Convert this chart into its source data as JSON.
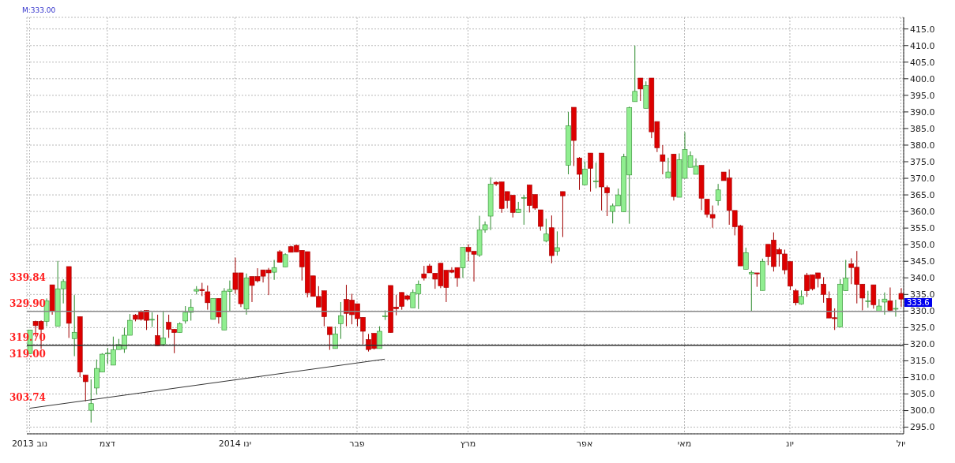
{
  "chart_data": {
    "type": "candlestick",
    "categories": [
      "2013 נוב",
      null,
      null,
      null,
      null,
      null,
      null,
      null,
      null,
      null,
      null,
      null,
      null,
      null,
      "דצמ",
      null,
      null,
      null,
      null,
      null,
      null,
      null,
      null,
      null,
      null,
      null,
      null,
      null,
      null,
      null,
      null,
      null,
      null,
      null,
      null,
      null,
      null,
      "2014 ינו",
      null,
      null,
      null,
      null,
      null,
      null,
      null,
      null,
      null,
      null,
      null,
      null,
      null,
      null,
      null,
      null,
      null,
      null,
      null,
      null,
      null,
      "פבר",
      null,
      null,
      null,
      null,
      null,
      null,
      null,
      null,
      null,
      null,
      null,
      null,
      null,
      null,
      null,
      null,
      null,
      null,
      null,
      "מרץ",
      null,
      null,
      null,
      null,
      null,
      null,
      null,
      null,
      null,
      null,
      null,
      null,
      null,
      null,
      null,
      null,
      null,
      null,
      null,
      null,
      "אפר",
      null,
      null,
      null,
      null,
      null,
      null,
      null,
      null,
      null,
      null,
      null,
      null,
      null,
      null,
      null,
      null,
      null,
      "מאי",
      null,
      null,
      null,
      null,
      null,
      null,
      null,
      null,
      null,
      null,
      null,
      null,
      null,
      null,
      null,
      null,
      null,
      null,
      "יונ",
      null,
      null,
      null,
      null,
      null,
      null,
      null,
      null,
      null,
      null,
      null,
      null,
      null,
      null,
      null,
      null,
      null,
      null,
      null,
      "יול"
    ],
    "ohlc": [
      [
        317.2,
        324.3,
        317.0,
        324.3
      ],
      [
        326.9,
        327.1,
        322.3,
        325.6
      ],
      [
        326.9,
        327.2,
        318.6,
        324.5
      ],
      [
        326.9,
        333.8,
        325.4,
        333.1
      ],
      [
        337.9,
        337.9,
        328.9,
        330.0
      ],
      [
        325.4,
        345.1,
        325.4,
        336.7
      ],
      [
        336.7,
        339.6,
        332.3,
        338.9
      ],
      [
        343.4,
        343.4,
        321.9,
        326.3
      ],
      [
        321.7,
        334.8,
        316.4,
        323.6
      ],
      [
        328.3,
        328.3,
        310.1,
        311.6
      ],
      [
        310.7,
        310.7,
        302.8,
        308.7
      ],
      [
        300.1,
        309.4,
        296.4,
        302.1
      ],
      [
        306.8,
        315.4,
        304.8,
        312.7
      ],
      [
        311.6,
        317.3,
        311.6,
        317.0
      ],
      [
        317.3,
        318.9,
        314.0,
        317.3
      ],
      [
        313.7,
        322.3,
        313.7,
        318.3
      ],
      [
        318.4,
        321.6,
        318.4,
        319.9
      ],
      [
        318.6,
        325.0,
        317.4,
        322.7
      ],
      [
        322.7,
        329.1,
        322.7,
        327.2
      ],
      [
        328.8,
        329.1,
        326.9,
        327.5
      ],
      [
        330.0,
        330.2,
        327.1,
        327.5
      ],
      [
        330.2,
        330.2,
        324.3,
        327.2
      ],
      [
        327.5,
        329.6,
        325.2,
        327.5
      ],
      [
        322.6,
        328.9,
        319.5,
        319.5
      ],
      [
        320.0,
        330.0,
        319.4,
        321.9
      ],
      [
        326.6,
        328.9,
        321.9,
        324.5
      ],
      [
        324.5,
        324.5,
        317.3,
        323.5
      ],
      [
        323.5,
        326.6,
        323.5,
        326.2
      ],
      [
        327.0,
        331.5,
        326.2,
        329.6
      ],
      [
        329.6,
        333.6,
        327.1,
        331.1
      ],
      [
        336.0,
        337.5,
        335.0,
        336.5
      ],
      [
        336.5,
        338.5,
        334.5,
        336.1
      ],
      [
        335.8,
        337.7,
        330.4,
        332.5
      ],
      [
        327.5,
        333.8,
        327.5,
        333.8
      ],
      [
        333.8,
        333.8,
        326.2,
        328.2
      ],
      [
        324.3,
        336.9,
        324.3,
        336.0
      ],
      [
        335.9,
        339.2,
        330.0,
        336.5
      ],
      [
        341.5,
        346.1,
        335.2,
        336.5
      ],
      [
        341.5,
        341.5,
        331.2,
        332.2
      ],
      [
        330.6,
        341.3,
        328.9,
        340.0
      ],
      [
        340.4,
        340.4,
        332.7,
        337.7
      ],
      [
        340.4,
        342.9,
        338.6,
        339.1
      ],
      [
        342.4,
        342.4,
        338.6,
        340.5
      ],
      [
        342.4,
        343.0,
        334.8,
        341.5
      ],
      [
        341.7,
        345.4,
        339.4,
        343.1
      ],
      [
        347.9,
        348.4,
        344.7,
        344.7
      ],
      [
        343.3,
        347.4,
        343.3,
        347.0
      ],
      [
        349.4,
        349.7,
        347.7,
        347.7
      ],
      [
        349.8,
        350.0,
        347.8,
        347.8
      ],
      [
        348.3,
        348.3,
        339.2,
        343.3
      ],
      [
        347.9,
        347.9,
        334.1,
        335.5
      ],
      [
        340.6,
        340.6,
        334.4,
        334.4
      ],
      [
        334.4,
        337.5,
        331.2,
        331.2
      ],
      [
        336.1,
        336.1,
        325.4,
        328.3
      ],
      [
        325.2,
        325.2,
        318.3,
        322.9
      ],
      [
        318.7,
        325.3,
        318.7,
        323.1
      ],
      [
        326.2,
        332.7,
        321.6,
        328.6
      ],
      [
        333.5,
        337.9,
        325.4,
        329.3
      ],
      [
        333.3,
        335.2,
        326.0,
        328.9
      ],
      [
        332.2,
        332.2,
        325.4,
        327.7
      ],
      [
        328.1,
        328.1,
        320.0,
        323.9
      ],
      [
        321.4,
        323.1,
        317.8,
        318.4
      ],
      [
        323.3,
        323.3,
        318.4,
        318.7
      ],
      [
        318.7,
        325.4,
        318.7,
        323.9
      ],
      [
        328.5,
        330.2,
        327.3,
        328.5
      ],
      [
        337.7,
        337.7,
        323.5,
        323.5
      ],
      [
        331.2,
        334.9,
        328.7,
        330.7
      ],
      [
        335.6,
        335.6,
        330.4,
        331.4
      ],
      [
        334.6,
        334.8,
        333.1,
        333.6
      ],
      [
        331.0,
        336.5,
        331.0,
        335.6
      ],
      [
        335.2,
        339.2,
        330.6,
        338.1
      ],
      [
        341.2,
        343.6,
        339.2,
        339.9
      ],
      [
        343.6,
        344.2,
        341.5,
        341.5
      ],
      [
        341.4,
        341.4,
        336.7,
        339.6
      ],
      [
        344.4,
        344.4,
        336.9,
        337.6
      ],
      [
        342.3,
        342.3,
        332.7,
        337.1
      ],
      [
        342.3,
        343.2,
        341.4,
        341.7
      ],
      [
        343.1,
        343.1,
        337.3,
        340.0
      ],
      [
        343.0,
        349.2,
        340.0,
        349.2
      ],
      [
        349.2,
        350.1,
        345.0,
        347.9
      ],
      [
        348.0,
        348.0,
        338.9,
        347.1
      ],
      [
        346.9,
        358.7,
        346.3,
        354.4
      ],
      [
        354.4,
        357.0,
        353.6,
        356.0
      ],
      [
        358.6,
        370.3,
        354.4,
        368.2
      ],
      [
        368.8,
        369.1,
        367.7,
        368.3
      ],
      [
        368.9,
        368.9,
        359.6,
        360.9
      ],
      [
        366.0,
        366.0,
        360.9,
        363.3
      ],
      [
        364.9,
        364.9,
        358.2,
        359.7
      ],
      [
        359.7,
        362.9,
        359.7,
        360.7
      ],
      [
        364.2,
        365.0,
        356.0,
        364.2
      ],
      [
        368.0,
        368.0,
        359.7,
        361.8
      ],
      [
        365.1,
        365.1,
        360.5,
        361.0
      ],
      [
        360.5,
        360.5,
        354.2,
        355.5
      ],
      [
        351.1,
        357.8,
        350.7,
        353.2
      ],
      [
        355.1,
        358.8,
        344.4,
        346.7
      ],
      [
        348.0,
        354.0,
        346.7,
        349.1
      ],
      [
        366.0,
        366.0,
        352.3,
        364.7
      ],
      [
        373.9,
        390.0,
        371.2,
        385.8
      ],
      [
        391.4,
        391.4,
        373.7,
        381.4
      ],
      [
        376.1,
        376.4,
        366.5,
        371.2
      ],
      [
        368.0,
        375.1,
        368.0,
        372.8
      ],
      [
        377.6,
        377.6,
        366.0,
        373.0
      ],
      [
        369.2,
        374.7,
        367.0,
        369.2
      ],
      [
        377.6,
        377.6,
        360.3,
        367.4
      ],
      [
        367.2,
        367.8,
        358.6,
        365.6
      ],
      [
        360.0,
        362.4,
        356.4,
        361.7
      ],
      [
        361.7,
        366.9,
        361.7,
        365.0
      ],
      [
        359.9,
        377.4,
        359.9,
        376.5
      ],
      [
        371.0,
        391.6,
        356.3,
        391.3
      ],
      [
        393.1,
        410.0,
        393.1,
        396.2
      ],
      [
        400.2,
        400.2,
        393.3,
        396.9
      ],
      [
        391.1,
        399.2,
        391.1,
        397.9
      ],
      [
        400.2,
        400.2,
        382.1,
        384.0
      ],
      [
        387.1,
        387.1,
        377.9,
        379.2
      ],
      [
        377.1,
        380.0,
        371.2,
        375.1
      ],
      [
        370.2,
        376.2,
        370.2,
        371.9
      ],
      [
        377.3,
        377.3,
        363.3,
        364.5
      ],
      [
        364.3,
        377.5,
        364.3,
        375.6
      ],
      [
        370.0,
        383.9,
        370.0,
        378.7
      ],
      [
        373.3,
        378.1,
        373.3,
        376.8
      ],
      [
        371.2,
        376.0,
        371.2,
        373.7
      ],
      [
        373.9,
        373.9,
        360.4,
        364.0
      ],
      [
        363.7,
        363.7,
        358.2,
        359.1
      ],
      [
        359.1,
        361.8,
        355.1,
        358.0
      ],
      [
        363.2,
        368.3,
        361.8,
        366.5
      ],
      [
        371.9,
        371.9,
        369.3,
        369.3
      ],
      [
        370.1,
        372.7,
        356.0,
        360.3
      ],
      [
        360.3,
        360.3,
        352.8,
        355.4
      ],
      [
        355.7,
        356.0,
        343.6,
        343.6
      ],
      [
        342.6,
        349.1,
        342.6,
        347.6
      ],
      [
        341.2,
        342.2,
        329.9,
        341.6
      ],
      [
        341.5,
        341.5,
        337.3,
        341.2
      ],
      [
        336.2,
        345.8,
        336.2,
        344.9
      ],
      [
        350.1,
        350.1,
        343.8,
        346.4
      ],
      [
        351.4,
        353.7,
        341.9,
        343.4
      ],
      [
        348.5,
        349.1,
        343.4,
        347.2
      ],
      [
        347.2,
        348.5,
        341.1,
        342.4
      ],
      [
        344.9,
        344.9,
        336.3,
        337.5
      ],
      [
        336.1,
        336.7,
        331.7,
        332.5
      ],
      [
        332.1,
        336.2,
        331.9,
        334.4
      ],
      [
        340.8,
        341.5,
        334.3,
        336.1
      ],
      [
        340.9,
        340.9,
        336.2,
        336.7
      ],
      [
        341.5,
        341.5,
        337.1,
        339.8
      ],
      [
        338.1,
        340.2,
        332.5,
        335.0
      ],
      [
        333.8,
        335.9,
        327.9,
        327.9
      ],
      [
        328.0,
        330.8,
        324.3,
        327.7
      ],
      [
        325.2,
        339.6,
        325.2,
        338.1
      ],
      [
        336.1,
        345.4,
        336.1,
        339.9
      ],
      [
        344.2,
        345.9,
        338.1,
        343.1
      ],
      [
        343.2,
        348.1,
        332.3,
        338.0
      ],
      [
        338.1,
        338.1,
        330.2,
        333.9
      ],
      [
        333.1,
        336.1,
        331.0,
        333.1
      ],
      [
        337.9,
        337.9,
        330.7,
        331.9
      ],
      [
        330.0,
        333.6,
        330.0,
        331.5
      ],
      [
        332.7,
        335.6,
        328.9,
        333.6
      ],
      [
        333.1,
        337.1,
        329.8,
        330.2
      ],
      [
        330.6,
        333.4,
        328.3,
        330.8
      ],
      [
        335.3,
        336.9,
        331.2,
        333.6
      ]
    ],
    "colors": [
      "#90ee90",
      "#dd0000",
      "#dd0000",
      "#90ee90",
      "#dd0000",
      "#90ee90",
      "#90ee90",
      "#dd0000",
      "#90ee90",
      "#dd0000",
      "#dd0000",
      "#90ee90",
      "#90ee90",
      "#90ee90",
      "#90ee90",
      "#90ee90",
      "#90ee90",
      "#90ee90",
      "#90ee90",
      "#dd0000",
      "#dd0000",
      "#dd0000",
      "#90ee90",
      "#dd0000",
      "#90ee90",
      "#dd0000",
      "#dd0000",
      "#90ee90",
      "#90ee90",
      "#90ee90",
      "#90ee90",
      "#dd0000",
      "#dd0000",
      "#90ee90",
      "#dd0000",
      "#90ee90",
      "#90ee90",
      "#dd0000",
      "#dd0000",
      "#90ee90",
      "#dd0000",
      "#dd0000",
      "#dd0000",
      "#dd0000",
      "#90ee90",
      "#dd0000",
      "#90ee90",
      "#dd0000",
      "#dd0000",
      "#dd0000",
      "#dd0000",
      "#dd0000",
      "#dd0000",
      "#dd0000",
      "#dd0000",
      "#90ee90",
      "#90ee90",
      "#dd0000",
      "#dd0000",
      "#dd0000",
      "#dd0000",
      "#dd0000",
      "#dd0000",
      "#90ee90",
      "#90ee90",
      "#dd0000",
      "#dd0000",
      "#dd0000",
      "#dd0000",
      "#90ee90",
      "#90ee90",
      "#dd0000",
      "#dd0000",
      "#dd0000",
      "#dd0000",
      "#dd0000",
      "#dd0000",
      "#dd0000",
      "#90ee90",
      "#dd0000",
      "#dd0000",
      "#90ee90",
      "#90ee90",
      "#90ee90",
      "#dd0000",
      "#dd0000",
      "#dd0000",
      "#dd0000",
      "#90ee90",
      "#90ee90",
      "#dd0000",
      "#dd0000",
      "#dd0000",
      "#90ee90",
      "#dd0000",
      "#90ee90",
      "#dd0000",
      "#90ee90",
      "#dd0000",
      "#dd0000",
      "#90ee90",
      "#dd0000",
      "#90ee90",
      "#dd0000",
      "#dd0000",
      "#90ee90",
      "#90ee90",
      "#90ee90",
      "#90ee90",
      "#90ee90",
      "#dd0000",
      "#90ee90",
      "#dd0000",
      "#dd0000",
      "#dd0000",
      "#90ee90",
      "#dd0000",
      "#90ee90",
      "#90ee90",
      "#90ee90",
      "#90ee90",
      "#dd0000",
      "#dd0000",
      "#dd0000",
      "#90ee90",
      "#dd0000",
      "#dd0000",
      "#dd0000",
      "#dd0000",
      "#90ee90",
      "#90ee90",
      "#dd0000",
      "#90ee90",
      "#dd0000",
      "#dd0000",
      "#dd0000",
      "#dd0000",
      "#dd0000",
      "#dd0000",
      "#90ee90",
      "#dd0000",
      "#dd0000",
      "#dd0000",
      "#dd0000",
      "#dd0000",
      "#dd0000",
      "#90ee90",
      "#90ee90",
      "#dd0000",
      "#dd0000",
      "#dd0000",
      "#90ee90",
      "#dd0000",
      "#90ee90",
      "#90ee90",
      "#dd0000",
      "#90ee90",
      "#dd0000"
    ],
    "ylim": [
      293,
      418.5
    ],
    "yticks": [
      {
        "value": 295,
        "label": "295.0"
      },
      {
        "value": 300,
        "label": "300.0"
      },
      {
        "value": 305,
        "label": "305.0"
      },
      {
        "value": 310,
        "label": "310.0"
      },
      {
        "value": 315,
        "label": "315.0"
      },
      {
        "value": 320,
        "label": "320.0"
      },
      {
        "value": 325,
        "label": "325.0"
      },
      {
        "value": 330,
        "label": "330.0"
      },
      {
        "value": 335,
        "label": "335.0"
      },
      {
        "value": 340,
        "label": "340.0"
      },
      {
        "value": 345,
        "label": "345.0"
      },
      {
        "value": 350,
        "label": "350.0"
      },
      {
        "value": 355,
        "label": "355.0"
      },
      {
        "value": 360,
        "label": "360.0"
      },
      {
        "value": 365,
        "label": "365.0"
      },
      {
        "value": 370,
        "label": "370.0"
      },
      {
        "value": 375,
        "label": "375.0"
      },
      {
        "value": 380,
        "label": "380.0"
      },
      {
        "value": 385,
        "label": "385.0"
      },
      {
        "value": 390,
        "label": "390.0"
      },
      {
        "value": 395,
        "label": "395.0"
      },
      {
        "value": 400,
        "label": "400.0"
      },
      {
        "value": 405,
        "label": "405.0"
      },
      {
        "value": 410,
        "label": "410.0"
      },
      {
        "value": 415,
        "label": "415.0"
      }
    ],
    "grid": true,
    "ref_lines": [
      {
        "axis": "y",
        "value": 329.9,
        "label": "329.90",
        "color": "#888888"
      },
      {
        "axis": "y",
        "value": 319.7,
        "label": "319.70",
        "color": "#333333"
      }
    ],
    "annotations": [
      "M:333.00",
      "339.84",
      {
        "text": "319.00",
        "y": 319.0
      },
      "303.74",
      {
        "text": "333.6",
        "x": "יול",
        "y": 333.6
      }
    ],
    "series": [
      {
        "type": "line",
        "color": "#333333",
        "values": [
          300.7,
          null,
          null,
          null,
          null,
          null,
          null,
          null,
          null,
          null,
          null,
          null,
          null,
          null,
          null,
          null,
          null,
          null,
          null,
          null,
          null,
          null,
          null,
          null,
          null,
          null,
          null,
          null,
          null,
          null,
          null,
          null,
          null,
          null,
          null,
          null,
          null,
          null,
          null,
          null,
          null,
          null,
          null,
          null,
          null,
          null,
          null,
          null,
          null,
          null,
          null,
          null,
          null,
          null,
          null,
          null,
          null,
          null,
          null,
          null,
          null,
          null,
          null,
          null,
          315.5,
          null,
          null,
          null,
          null,
          null,
          null,
          null,
          null,
          null,
          null,
          null,
          null,
          null,
          null,
          null,
          null,
          null,
          null,
          null,
          null,
          null,
          null,
          null,
          null,
          null,
          null,
          null,
          null,
          null,
          null,
          null,
          null,
          null,
          null,
          null,
          null,
          null,
          null,
          null,
          null,
          null,
          null,
          null,
          null,
          null,
          null,
          null,
          null,
          null,
          null,
          null,
          null,
          null,
          null,
          null,
          null,
          null,
          null,
          null,
          null,
          null,
          null,
          null,
          null,
          null,
          null,
          null,
          null,
          null,
          null,
          null,
          null,
          null,
          null,
          null,
          null,
          null,
          null,
          null,
          null,
          null,
          null,
          null,
          null,
          null,
          null,
          null,
          null,
          null,
          null,
          null,
          null,
          null
        ]
      }
    ]
  }
}
